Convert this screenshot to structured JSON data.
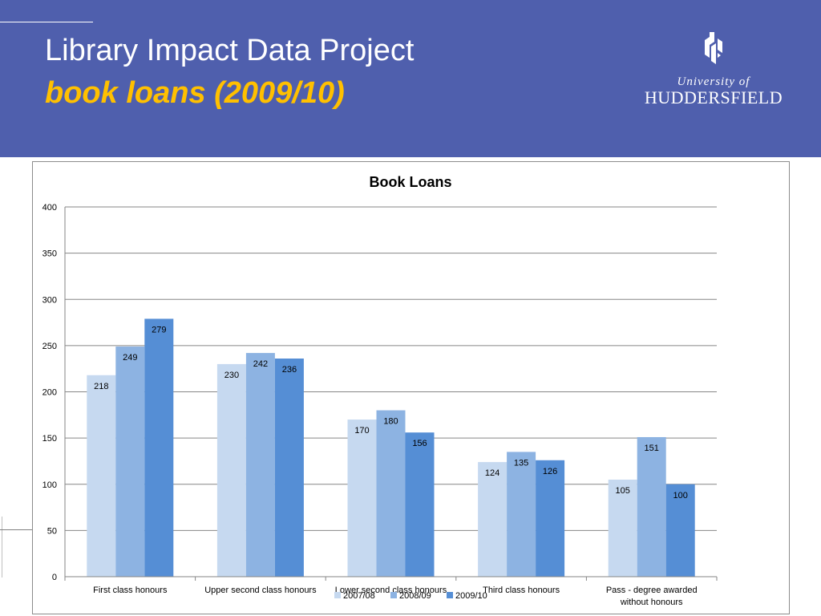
{
  "slide": {
    "title": "Library Impact Data Project",
    "subtitle": "book loans (2009/10)"
  },
  "logo": {
    "line1": "University of",
    "line2": "HUDDERSFIELD",
    "icon": "university-crest-icon"
  },
  "colors": {
    "header_bg": "#4f5fad",
    "subtitle": "#ffc000",
    "series": [
      "#c6d9f0",
      "#8db3e2",
      "#558ed5"
    ]
  },
  "chart_data": {
    "type": "bar",
    "title": "Book Loans",
    "xlabel": "",
    "ylabel": "",
    "ylim": [
      0,
      400
    ],
    "yticks": [
      0,
      50,
      100,
      150,
      200,
      250,
      300,
      350,
      400
    ],
    "grid": true,
    "legend_position": "bottom",
    "categories": [
      [
        "First class honours"
      ],
      [
        "Upper second class honours"
      ],
      [
        "Lower second class honours"
      ],
      [
        "Third class honours"
      ],
      [
        "Pass - degree awarded",
        "without honours"
      ]
    ],
    "series": [
      {
        "name": "2007/08",
        "color": "#c6d9f0",
        "values": [
          218,
          230,
          170,
          124,
          105
        ]
      },
      {
        "name": "2008/09",
        "color": "#8db3e2",
        "values": [
          249,
          242,
          180,
          135,
          151
        ]
      },
      {
        "name": "2009/10",
        "color": "#558ed5",
        "values": [
          279,
          236,
          156,
          126,
          100
        ]
      }
    ]
  }
}
